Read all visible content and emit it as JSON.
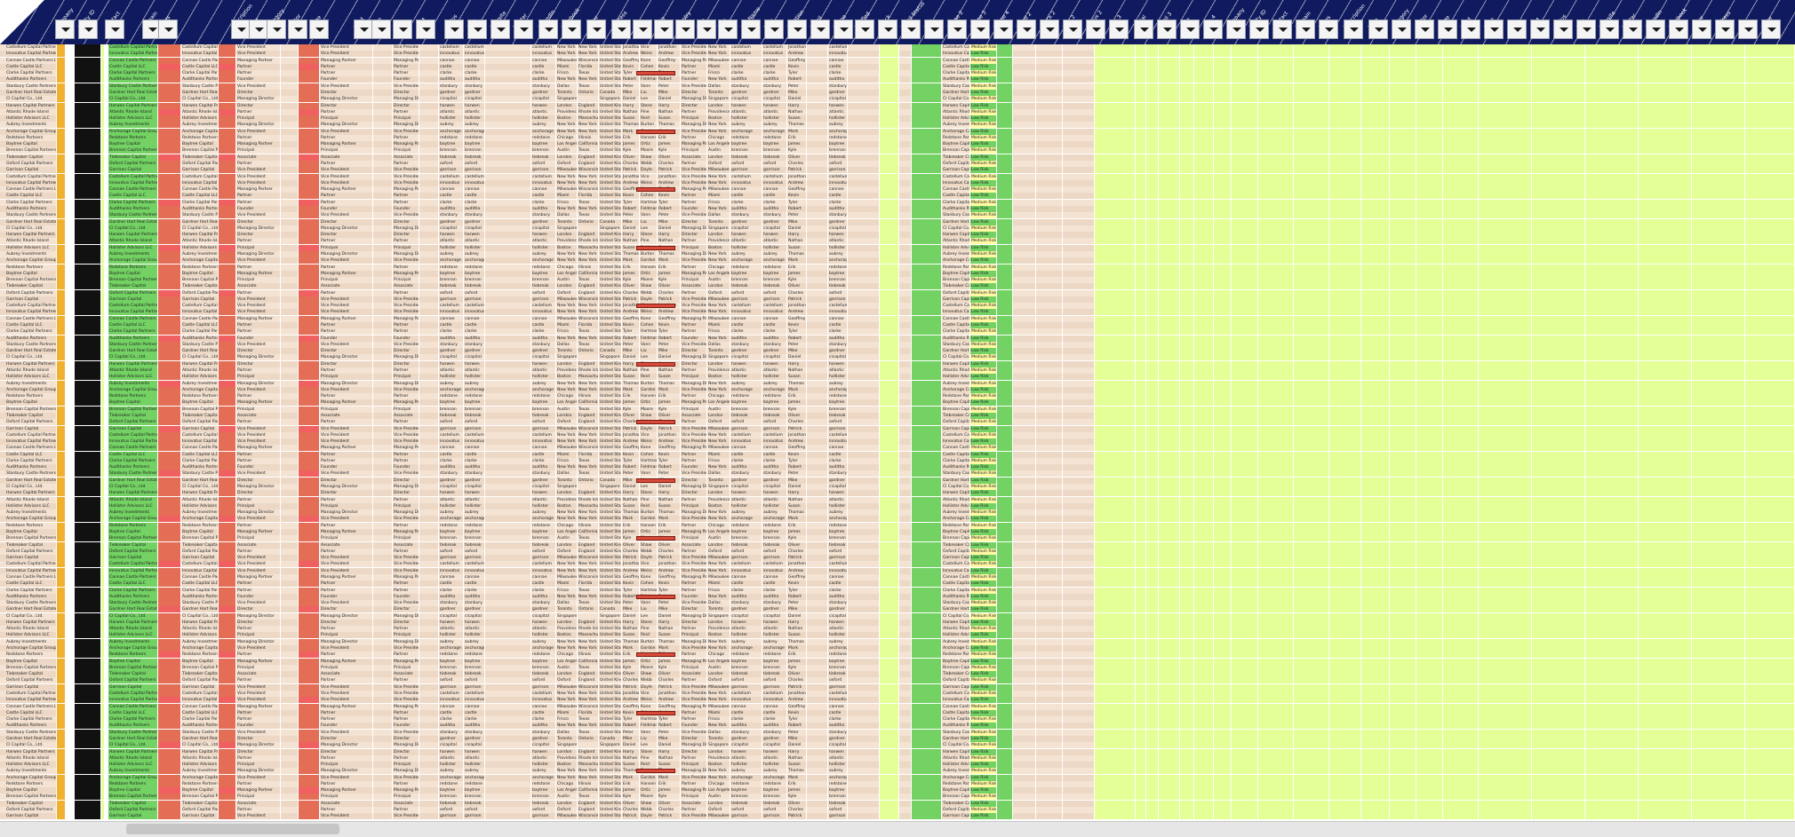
{
  "header": {
    "labels": [
      "Company",
      "Entity ID",
      "Contact",
      "Domain",
      "Notes",
      "Description",
      "Type",
      "Category",
      "Sector",
      "Stage",
      "Fund",
      "Date",
      "Size",
      "AUM",
      "Status",
      "Link",
      "Website",
      "Twitter",
      "LinkedIn",
      "Facebook",
      "Other",
      "Address",
      "City",
      "State",
      "Country",
      "First",
      "Last",
      "Full Name",
      "Title",
      "Location",
      "Email",
      "Phone",
      "Verified",
      "Check",
      "Email Status",
      "Risk",
      "Phone 2",
      "Phone 3",
      "Phone 4",
      "Email 2",
      "Check 2",
      "Risk 2",
      "Status 2",
      "Risk 3",
      "Social",
      "Email 3",
      "Note",
      "Risk 4"
    ],
    "filter_columns": [
      62,
      88,
      118,
      160,
      178,
      260,
      280,
      300,
      324,
      348,
      398,
      418,
      442,
      468,
      500,
      526,
      552,
      578,
      606,
      632,
      660,
      688,
      712,
      736,
      760,
      784,
      808,
      834,
      860,
      886,
      912,
      938,
      962,
      988,
      1014,
      1040,
      1066,
      1092,
      1118,
      1144,
      1170,
      1196,
      1222,
      1248,
      1276,
      1302,
      1328,
      1354,
      1380,
      1406,
      1432,
      1458,
      1484,
      1512,
      1540,
      1566,
      1592,
      1618,
      1644,
      1670,
      1696,
      1722,
      1748,
      1774,
      1800,
      1826,
      1852,
      1878,
      1904,
      1930,
      1956,
      1982
    ]
  },
  "rows": [
    {
      "company": "Castellum Capital Partners",
      "id": "A1",
      "domain": "castellum",
      "city": "New York",
      "state": "New York",
      "country": "United State",
      "first": "Jonathan",
      "last": "Vice",
      "title": "Vice President",
      "risk": "Medium Risk"
    },
    {
      "company": "Innovatus Capital Partners",
      "id": "A2",
      "domain": "innovatus",
      "city": "New York",
      "state": "New York",
      "country": "United State",
      "first": "Andrew",
      "last": "Weiss",
      "title": "Vice President",
      "risk": "Low Risk"
    },
    {
      "company": "Cannae Castle Partners LLC",
      "id": "A3",
      "domain": "cannae",
      "city": "Milwaukee",
      "state": "Wisconsin",
      "country": "United State",
      "first": "Geoffrey",
      "last": "Kane",
      "title": "Managing Partner",
      "risk": "Medium Risk"
    },
    {
      "company": "Castle Capital LLC",
      "id": "A4",
      "domain": "castle",
      "city": "Miami",
      "state": "Florida",
      "country": "United State",
      "first": "Kevin",
      "last": "Cohen",
      "title": "Partner",
      "risk": "Low Risk"
    },
    {
      "company": "Clarke Capital Partners",
      "id": "A5",
      "domain": "clarke",
      "city": "Frisco",
      "state": "Texas",
      "country": "United State",
      "first": "Tyler",
      "last": "Hartman",
      "title": "Partner",
      "risk": "Medium Risk"
    },
    {
      "company": "Audithanks Partners",
      "id": "A6",
      "domain": "auditha",
      "city": "New York",
      "state": "New York",
      "country": "United State",
      "first": "Robert",
      "last": "Feldman",
      "title": "Founder",
      "risk": "Low Risk"
    },
    {
      "company": "Stanbury Castle Partners LP",
      "id": "A7",
      "domain": "stanbury",
      "city": "Dallas",
      "state": "Texas",
      "country": "United State",
      "first": "Peter",
      "last": "Vann",
      "title": "Vice President",
      "risk": "Medium Risk"
    },
    {
      "company": "Gardner Hart Real Estate",
      "id": "A8",
      "domain": "gardner",
      "city": "Toronto",
      "state": "Ontario",
      "country": "Canada",
      "first": "Mike",
      "last": "Liu",
      "title": "Director",
      "risk": "Low Risk"
    },
    {
      "company": "CI Capital Co., Ltd.",
      "id": "A9",
      "domain": "cicapital",
      "city": "Singapore",
      "state": "",
      "country": "Singapore",
      "first": "Daniel",
      "last": "Lee",
      "title": "Managing Director",
      "risk": "Medium Risk"
    },
    {
      "company": "Harwen Capital Partners",
      "id": "A10",
      "domain": "harwen",
      "city": "London",
      "state": "England",
      "country": "United King",
      "first": "Harry",
      "last": "Stone",
      "title": "Director",
      "risk": "Low Risk"
    },
    {
      "company": "Atlantic Rhode Island",
      "id": "A11",
      "domain": "atlantic",
      "city": "Providence",
      "state": "Rhode Island",
      "country": "United State",
      "first": "Nathan",
      "last": "Pine",
      "title": "Partner",
      "risk": "Medium Risk"
    },
    {
      "company": "Hollister Advisors LLC",
      "id": "A12",
      "domain": "hollister",
      "city": "Boston",
      "state": "Massachusetts",
      "country": "United State",
      "first": "Susan",
      "last": "Reid",
      "title": "Principal",
      "risk": "Low Risk"
    },
    {
      "company": "Aubrey Investments",
      "id": "A13",
      "domain": "aubrey",
      "city": "New York",
      "state": "New York",
      "country": "United State",
      "first": "Thomas",
      "last": "Burton",
      "title": "Managing Director",
      "risk": "Medium Risk"
    },
    {
      "company": "Anchorage Capital Group",
      "id": "A14",
      "domain": "anchorage",
      "city": "New York",
      "state": "New York",
      "country": "United State",
      "first": "Mark",
      "last": "Gordon",
      "title": "Vice President",
      "risk": "Low Risk"
    },
    {
      "company": "Redstone Partners",
      "id": "A15",
      "domain": "redstone",
      "city": "Chicago",
      "state": "Illinois",
      "country": "United State",
      "first": "Erik",
      "last": "Hansen",
      "title": "Partner",
      "risk": "Medium Risk"
    },
    {
      "company": "Baytree Capital",
      "id": "A16",
      "domain": "baytree",
      "city": "Los Angeles",
      "state": "California",
      "country": "United State",
      "first": "James",
      "last": "Ortiz",
      "title": "Managing Partner",
      "risk": "Low Risk"
    },
    {
      "company": "Brennan Capital Partners",
      "id": "A17",
      "domain": "brennan",
      "city": "Austin",
      "state": "Texas",
      "country": "United State",
      "first": "Kyle",
      "last": "Moore",
      "title": "Principal",
      "risk": "Medium Risk"
    },
    {
      "company": "Tiebreaker Capital",
      "id": "A18",
      "domain": "tiebreak",
      "city": "London",
      "state": "England",
      "country": "United King",
      "first": "Oliver",
      "last": "Shaw",
      "title": "Associate",
      "risk": "Low Risk"
    },
    {
      "company": "Oxford Capital Partners",
      "id": "A19",
      "domain": "oxford",
      "city": "Oxford",
      "state": "England",
      "country": "United King",
      "first": "Charles",
      "last": "Webb",
      "title": "Partner",
      "risk": "Medium Risk"
    },
    {
      "company": "Garrison Capital",
      "id": "A20",
      "domain": "garrison",
      "city": "Milwaukee",
      "state": "Wisconsin",
      "country": "United State",
      "first": "Patrick",
      "last": "Doyle",
      "title": "Vice President",
      "risk": "Low Risk"
    }
  ],
  "scroll": {
    "label": "horizontal-scroll"
  },
  "colors": {
    "header": "#101a5e",
    "row": "#f4e3d3",
    "red": "#e36d55",
    "green": "#73d263",
    "lime": "#e4ff95"
  }
}
